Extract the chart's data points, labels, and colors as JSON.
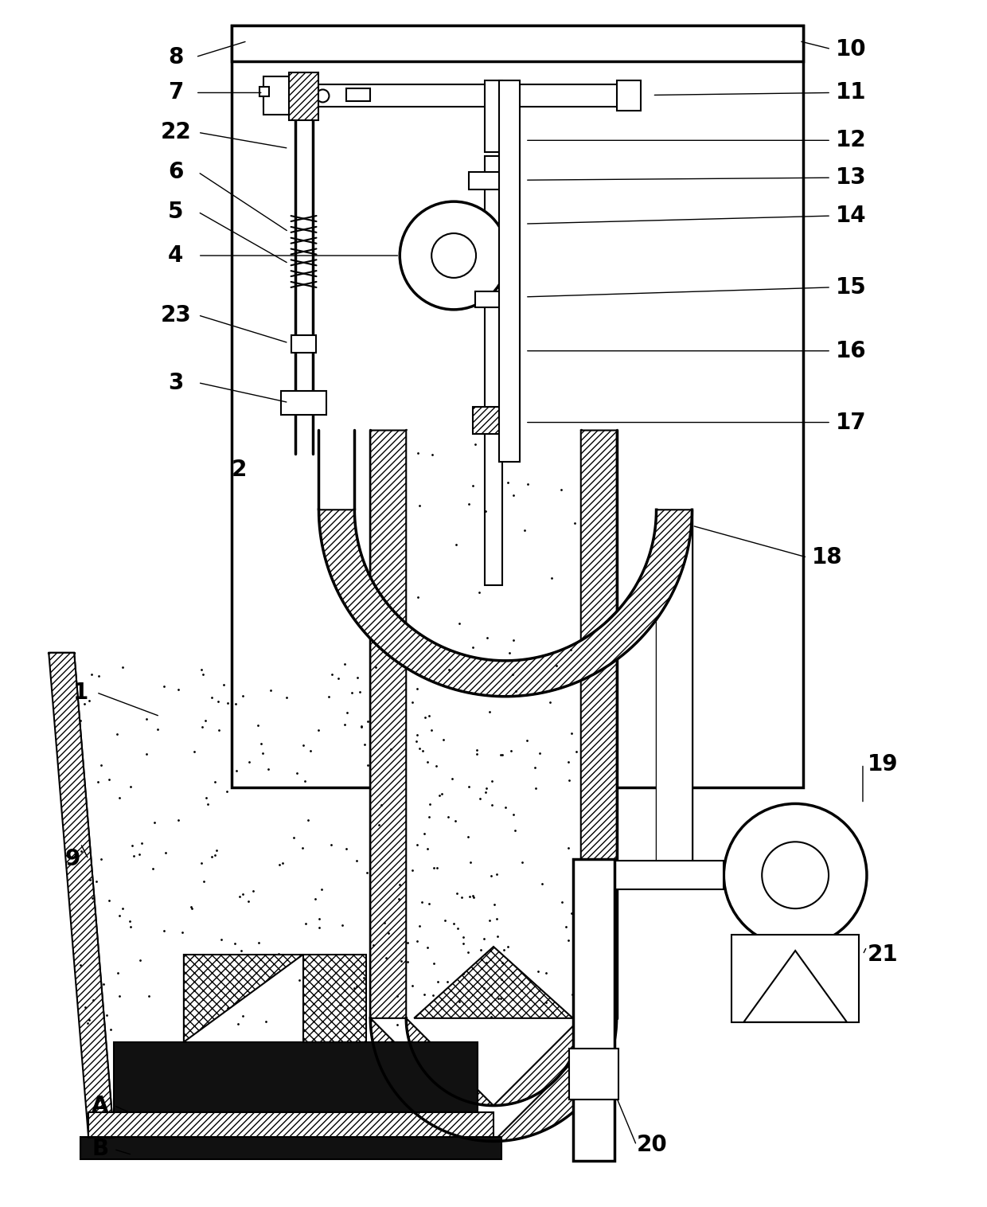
{
  "bg_color": "#ffffff",
  "line_color": "#000000",
  "fig_width": 12.4,
  "fig_height": 15.16
}
